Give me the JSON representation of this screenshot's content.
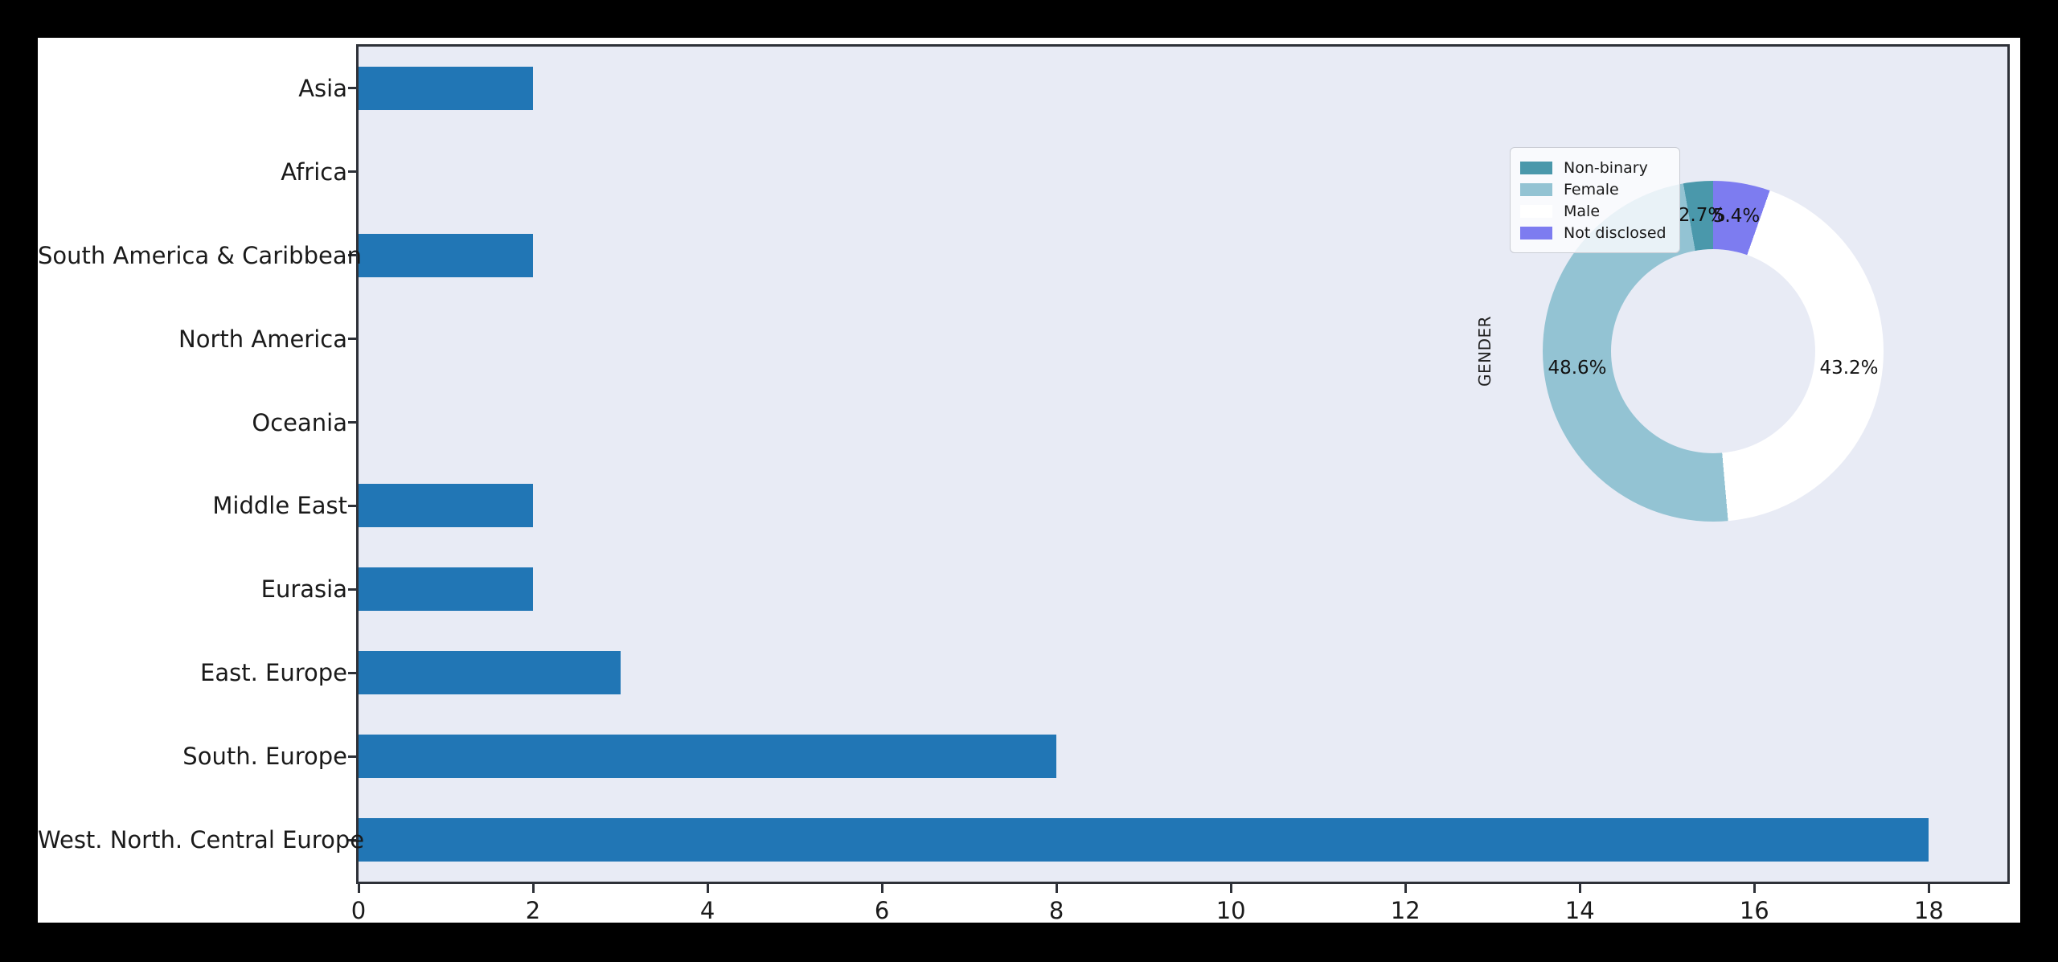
{
  "figure": {
    "canvas_background": "#000000",
    "figure_background": "#ffffff"
  },
  "chart_data": [
    {
      "type": "bar",
      "orientation": "horizontal",
      "title": "",
      "xlabel": "",
      "ylabel": "",
      "categories": [
        "Asia",
        "Africa",
        "South America & Caribbean",
        "North America",
        "Oceania",
        "Middle East",
        "Eurasia",
        "East. Europe",
        "South. Europe",
        "West. North. Central Europe"
      ],
      "values": [
        2,
        0,
        2,
        0,
        0,
        2,
        2,
        3,
        8,
        18
      ],
      "xtick_labels": [
        "0",
        "2",
        "4",
        "6",
        "8",
        "10",
        "12",
        "14",
        "16",
        "18"
      ],
      "xlim": [
        0,
        18.9
      ],
      "grid": false,
      "bar_color": "#2176b5",
      "plot_background": "#e8ebf5"
    },
    {
      "type": "pie",
      "donut": true,
      "ylabel": "GENDER",
      "legend_position": "upper left",
      "start_angle_deg": 90,
      "direction": "counterclockwise",
      "slices": [
        {
          "label": "Non-binary",
          "pct": 2.7,
          "pct_label": "2.7%",
          "color": "#4a98ab"
        },
        {
          "label": "Female",
          "pct": 48.6,
          "pct_label": "48.6%",
          "color": "#93c3d3"
        },
        {
          "label": "Male",
          "pct": 43.2,
          "pct_label": "43.2%",
          "color": "#ffffff"
        },
        {
          "label": "Not disclosed",
          "pct": 5.4,
          "pct_label": "5.4%",
          "color": "#7d7cf0"
        }
      ]
    }
  ]
}
